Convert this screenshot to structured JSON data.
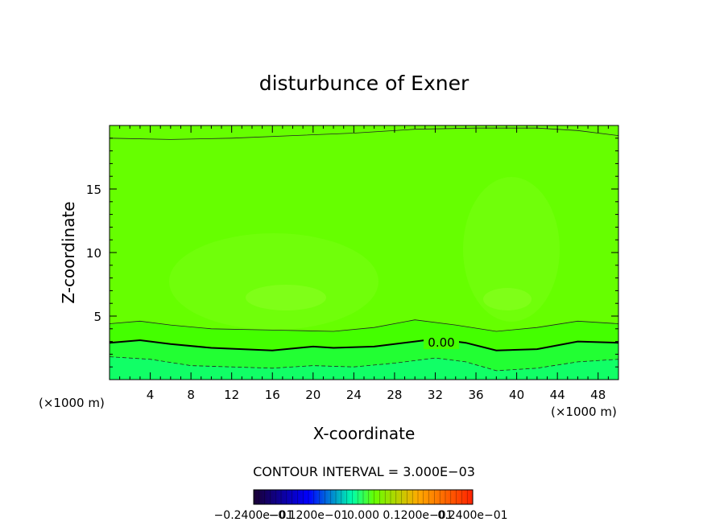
{
  "chart_data": {
    "type": "contour",
    "title": "disturbunce of Exner",
    "xlabel": "X-coordinate",
    "ylabel": "Z-coordinate",
    "x_unit_left": "(×1000 m)",
    "x_unit_right": "(×1000 m)",
    "xlim": [
      0,
      50
    ],
    "ylim": [
      0,
      20
    ],
    "xticks": [
      4,
      8,
      12,
      16,
      20,
      24,
      28,
      32,
      36,
      40,
      44,
      48
    ],
    "yticks": [
      5,
      10,
      15
    ],
    "contour_label": "0.00",
    "contour_interval_text": "CONTOUR INTERVAL = 3.000E−03",
    "colorbar_labels": [
      "−0.2400e−01",
      "−0.1200e−01",
      "0.000",
      "0.1200e−01",
      "0.2400e−01"
    ],
    "colorbar_range": [
      -0.024,
      0.024
    ],
    "colors": {
      "fill_top": "#66ff00",
      "fill_mid": "#44ff00",
      "fill_low1": "#22ff33",
      "fill_low2": "#11ff66",
      "fill_bottom": "#00ff88"
    },
    "contours": {
      "upper": [
        [
          0,
          19
        ],
        [
          6,
          18.9
        ],
        [
          12,
          19
        ],
        [
          18,
          19.2
        ],
        [
          24,
          19.4
        ],
        [
          30,
          19.7
        ],
        [
          36,
          19.8
        ],
        [
          42,
          19.8
        ],
        [
          46,
          19.6
        ],
        [
          50,
          19.2
        ]
      ],
      "mid": [
        [
          0,
          4.4
        ],
        [
          3,
          4.6
        ],
        [
          6,
          4.3
        ],
        [
          10,
          4.0
        ],
        [
          16,
          3.9
        ],
        [
          22,
          3.8
        ],
        [
          26,
          4.1
        ],
        [
          30,
          4.7
        ],
        [
          34,
          4.3
        ],
        [
          38,
          3.8
        ],
        [
          42,
          4.1
        ],
        [
          46,
          4.6
        ],
        [
          50,
          4.4
        ]
      ],
      "zero": [
        [
          0,
          2.9
        ],
        [
          3,
          3.1
        ],
        [
          6,
          2.8
        ],
        [
          10,
          2.5
        ],
        [
          16,
          2.3
        ],
        [
          20,
          2.6
        ],
        [
          22,
          2.5
        ],
        [
          26,
          2.6
        ],
        [
          30,
          3.0
        ],
        [
          32,
          3.2
        ],
        [
          35,
          2.9
        ],
        [
          38,
          2.3
        ],
        [
          42,
          2.4
        ],
        [
          46,
          3.0
        ],
        [
          50,
          2.9
        ]
      ],
      "dashed": [
        [
          0,
          1.8
        ],
        [
          4,
          1.6
        ],
        [
          8,
          1.1
        ],
        [
          12,
          1.0
        ],
        [
          16,
          0.9
        ],
        [
          20,
          1.1
        ],
        [
          24,
          1.0
        ],
        [
          28,
          1.3
        ],
        [
          32,
          1.7
        ],
        [
          35,
          1.4
        ],
        [
          38,
          0.7
        ],
        [
          42,
          0.9
        ],
        [
          46,
          1.4
        ],
        [
          50,
          1.6
        ]
      ]
    }
  }
}
